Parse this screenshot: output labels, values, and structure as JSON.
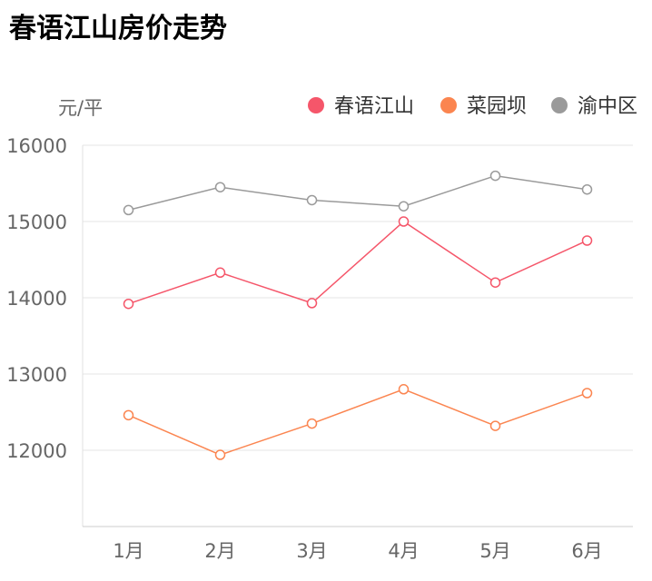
{
  "chart_data": {
    "type": "line",
    "title": "春语江山房价走势",
    "ylabel": "元/平",
    "xlabel": "",
    "categories": [
      "1月",
      "2月",
      "3月",
      "4月",
      "5月",
      "6月"
    ],
    "ylim": [
      11000,
      16000
    ],
    "yticks": [
      12000,
      13000,
      14000,
      15000,
      16000
    ],
    "grid": true,
    "legend_position": "top-right",
    "series": [
      {
        "name": "春语江山",
        "color": "#f5566a",
        "values": [
          13920,
          14330,
          13930,
          15000,
          14200,
          14750
        ]
      },
      {
        "name": "菜园坝",
        "color": "#fb8550",
        "values": [
          12460,
          11940,
          12350,
          12800,
          12320,
          12750
        ]
      },
      {
        "name": "渝中区",
        "color": "#9a9a9a",
        "values": [
          15150,
          15450,
          15280,
          15200,
          15600,
          15420
        ]
      }
    ]
  }
}
